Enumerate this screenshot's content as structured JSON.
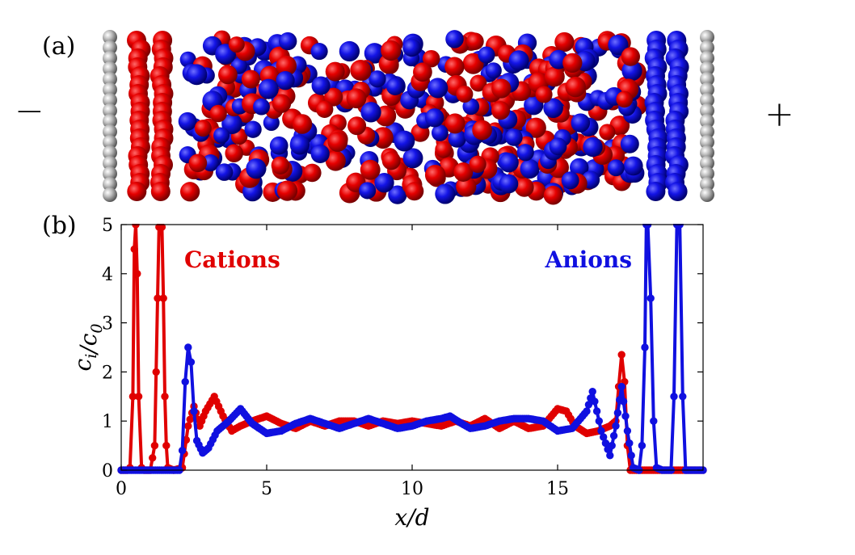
{
  "panel_a": {
    "label": "(a)",
    "left_sign": "−",
    "right_sign": "+",
    "colors": {
      "cation": "#e00000",
      "anion": "#1010e0",
      "electrode": "#a8a8a8"
    }
  },
  "panel_b": {
    "label": "(b)"
  },
  "chart_data": {
    "type": "line",
    "title": "",
    "xlabel": "x/d",
    "ylabel": "c_i/c_0",
    "xlim": [
      0,
      20
    ],
    "ylim": [
      0,
      5
    ],
    "x_ticks": [
      0,
      5,
      10,
      15
    ],
    "y_ticks": [
      0,
      1,
      2,
      3,
      4,
      5
    ],
    "grid": false,
    "annotations": [
      {
        "text": "Cations",
        "color": "#e00000"
      },
      {
        "text": "Anions",
        "color": "#1010e0"
      }
    ],
    "series": [
      {
        "name": "Cations",
        "color": "#e00000",
        "points": [
          [
            0.0,
            0
          ],
          [
            0.2,
            0
          ],
          [
            0.3,
            0.05
          ],
          [
            0.4,
            1.5
          ],
          [
            0.45,
            4.5
          ],
          [
            0.5,
            5
          ],
          [
            0.55,
            4.0
          ],
          [
            0.6,
            1.5
          ],
          [
            0.7,
            0.05
          ],
          [
            0.8,
            0
          ],
          [
            1.0,
            0
          ],
          [
            1.15,
            0.5
          ],
          [
            1.2,
            2.0
          ],
          [
            1.25,
            3.5
          ],
          [
            1.3,
            4.95
          ],
          [
            1.4,
            4.95
          ],
          [
            1.45,
            3.5
          ],
          [
            1.5,
            1.5
          ],
          [
            1.55,
            0.5
          ],
          [
            1.6,
            0.05
          ],
          [
            1.8,
            0
          ],
          [
            2.1,
            0.05
          ],
          [
            2.3,
            0.9
          ],
          [
            2.5,
            1.3
          ],
          [
            2.7,
            0.9
          ],
          [
            2.9,
            1.2
          ],
          [
            3.2,
            1.5
          ],
          [
            3.5,
            1.1
          ],
          [
            3.8,
            0.8
          ],
          [
            4.1,
            0.9
          ],
          [
            4.5,
            1.0
          ],
          [
            5.0,
            1.1
          ],
          [
            5.5,
            0.95
          ],
          [
            6.0,
            0.85
          ],
          [
            6.5,
            1.0
          ],
          [
            7.0,
            0.9
          ],
          [
            7.5,
            1.0
          ],
          [
            8.0,
            1.0
          ],
          [
            8.5,
            0.9
          ],
          [
            9.0,
            1.0
          ],
          [
            9.5,
            0.95
          ],
          [
            10.0,
            1.0
          ],
          [
            10.5,
            0.95
          ],
          [
            11.0,
            0.9
          ],
          [
            11.5,
            1.0
          ],
          [
            12.0,
            0.9
          ],
          [
            12.5,
            1.05
          ],
          [
            13.0,
            0.85
          ],
          [
            13.5,
            1.0
          ],
          [
            14.0,
            0.85
          ],
          [
            14.5,
            0.9
          ],
          [
            15.0,
            1.25
          ],
          [
            15.3,
            1.2
          ],
          [
            15.6,
            0.9
          ],
          [
            16.0,
            0.75
          ],
          [
            16.4,
            0.8
          ],
          [
            16.8,
            0.9
          ],
          [
            17.0,
            1.0
          ],
          [
            17.1,
            1.7
          ],
          [
            17.2,
            2.35
          ],
          [
            17.3,
            1.8
          ],
          [
            17.4,
            0.5
          ],
          [
            17.5,
            0
          ],
          [
            18.0,
            0
          ],
          [
            19.0,
            0
          ],
          [
            20.0,
            0
          ]
        ]
      },
      {
        "name": "Anions",
        "color": "#1010e0",
        "points": [
          [
            0.0,
            0
          ],
          [
            2.0,
            0
          ],
          [
            2.1,
            0.4
          ],
          [
            2.2,
            1.8
          ],
          [
            2.3,
            2.5
          ],
          [
            2.4,
            2.2
          ],
          [
            2.5,
            1.2
          ],
          [
            2.6,
            0.6
          ],
          [
            2.8,
            0.35
          ],
          [
            3.0,
            0.45
          ],
          [
            3.3,
            0.8
          ],
          [
            3.7,
            1.0
          ],
          [
            4.1,
            1.25
          ],
          [
            4.5,
            0.95
          ],
          [
            5.0,
            0.75
          ],
          [
            5.5,
            0.8
          ],
          [
            6.0,
            0.95
          ],
          [
            6.5,
            1.05
          ],
          [
            7.0,
            0.95
          ],
          [
            7.5,
            0.85
          ],
          [
            8.0,
            0.95
          ],
          [
            8.5,
            1.05
          ],
          [
            9.0,
            0.95
          ],
          [
            9.5,
            0.85
          ],
          [
            10.0,
            0.9
          ],
          [
            10.5,
            1.0
          ],
          [
            11.0,
            1.05
          ],
          [
            11.3,
            1.1
          ],
          [
            11.7,
            0.95
          ],
          [
            12.0,
            0.85
          ],
          [
            12.5,
            0.9
          ],
          [
            13.0,
            1.0
          ],
          [
            13.5,
            1.05
          ],
          [
            14.0,
            1.05
          ],
          [
            14.5,
            1.0
          ],
          [
            15.0,
            0.8
          ],
          [
            15.5,
            0.85
          ],
          [
            16.0,
            1.2
          ],
          [
            16.2,
            1.6
          ],
          [
            16.5,
            0.8
          ],
          [
            16.8,
            0.3
          ],
          [
            17.0,
            0.9
          ],
          [
            17.2,
            1.7
          ],
          [
            17.4,
            0.8
          ],
          [
            17.6,
            0.05
          ],
          [
            17.8,
            0
          ],
          [
            17.9,
            0.5
          ],
          [
            18.0,
            2.5
          ],
          [
            18.05,
            5
          ],
          [
            18.1,
            5
          ],
          [
            18.2,
            3.5
          ],
          [
            18.3,
            1.0
          ],
          [
            18.4,
            0.05
          ],
          [
            18.6,
            0
          ],
          [
            18.9,
            0
          ],
          [
            19.0,
            1.5
          ],
          [
            19.1,
            5
          ],
          [
            19.2,
            5
          ],
          [
            19.3,
            1.5
          ],
          [
            19.4,
            0
          ],
          [
            20.0,
            0
          ]
        ]
      }
    ]
  }
}
